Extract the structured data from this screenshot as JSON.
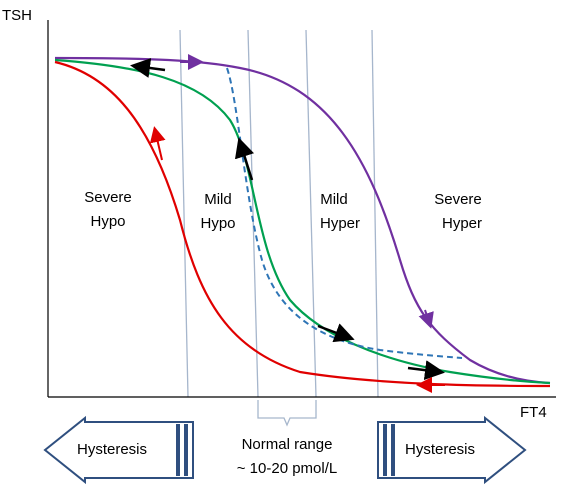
{
  "axes": {
    "y_label": "TSH",
    "x_label": "FT4"
  },
  "regions": [
    {
      "lines": [
        "Severe",
        "Hypo"
      ]
    },
    {
      "lines": [
        "Mild",
        "Hypo"
      ]
    },
    {
      "lines": [
        "Mild",
        "Hyper"
      ]
    },
    {
      "lines": [
        "Severe",
        "Hyper"
      ]
    }
  ],
  "normal_range": {
    "lines": [
      "Normal range",
      "~ 10-20 pmol/L"
    ]
  },
  "hysteresis_left": {
    "label": "Hysteresis"
  },
  "hysteresis_right": {
    "label": "Hysteresis"
  }
}
